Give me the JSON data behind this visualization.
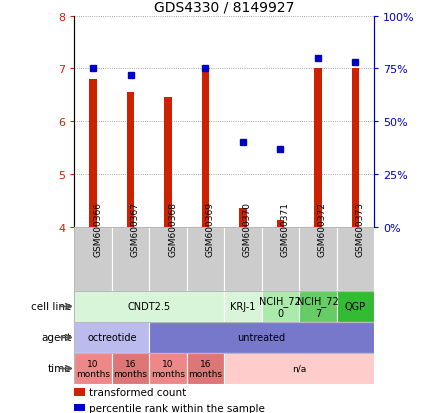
{
  "title": "GDS4330 / 8149927",
  "samples": [
    "GSM600366",
    "GSM600367",
    "GSM600368",
    "GSM600369",
    "GSM600370",
    "GSM600371",
    "GSM600372",
    "GSM600373"
  ],
  "red_values": [
    6.8,
    6.55,
    6.45,
    6.95,
    4.35,
    4.12,
    7.0,
    7.0
  ],
  "blue_values": [
    75,
    72,
    null,
    75,
    40,
    37,
    80,
    78
  ],
  "ylim": [
    4,
    8
  ],
  "y2lim": [
    0,
    100
  ],
  "yticks": [
    4,
    5,
    6,
    7,
    8
  ],
  "y2ticks": [
    0,
    25,
    50,
    75,
    100
  ],
  "y2ticklabels": [
    "0%",
    "25%",
    "50%",
    "75%",
    "100%"
  ],
  "cell_line_spans": [
    {
      "label": "CNDT2.5",
      "start": 0,
      "end": 4,
      "color": "#d9f5d9"
    },
    {
      "label": "KRJ-1",
      "start": 4,
      "end": 5,
      "color": "#d9f5d9"
    },
    {
      "label": "NCIH_72\n0",
      "start": 5,
      "end": 6,
      "color": "#aaeaaa"
    },
    {
      "label": "NCIH_72\n7",
      "start": 6,
      "end": 7,
      "color": "#66cc66"
    },
    {
      "label": "QGP",
      "start": 7,
      "end": 8,
      "color": "#33bb33"
    }
  ],
  "agent_spans": [
    {
      "label": "octreotide",
      "start": 0,
      "end": 2,
      "color": "#bbbbee"
    },
    {
      "label": "untreated",
      "start": 2,
      "end": 8,
      "color": "#7777cc"
    }
  ],
  "time_spans": [
    {
      "label": "10\nmonths",
      "start": 0,
      "end": 1,
      "color": "#ee8888"
    },
    {
      "label": "16\nmonths",
      "start": 1,
      "end": 2,
      "color": "#dd7777"
    },
    {
      "label": "10\nmonths",
      "start": 2,
      "end": 3,
      "color": "#ee8888"
    },
    {
      "label": "16\nmonths",
      "start": 3,
      "end": 4,
      "color": "#dd7777"
    },
    {
      "label": "n/a",
      "start": 4,
      "end": 8,
      "color": "#ffcccc"
    }
  ],
  "red_color": "#cc2200",
  "blue_color": "#0000cc",
  "bar_bottom": 4.0,
  "grid_color": "#888888",
  "sample_bg_color": "#cccccc",
  "row_labels": [
    "cell line",
    "agent",
    "time"
  ],
  "legend_items": [
    {
      "label": "transformed count",
      "color": "#cc2200"
    },
    {
      "label": "percentile rank within the sample",
      "color": "#0000cc"
    }
  ]
}
